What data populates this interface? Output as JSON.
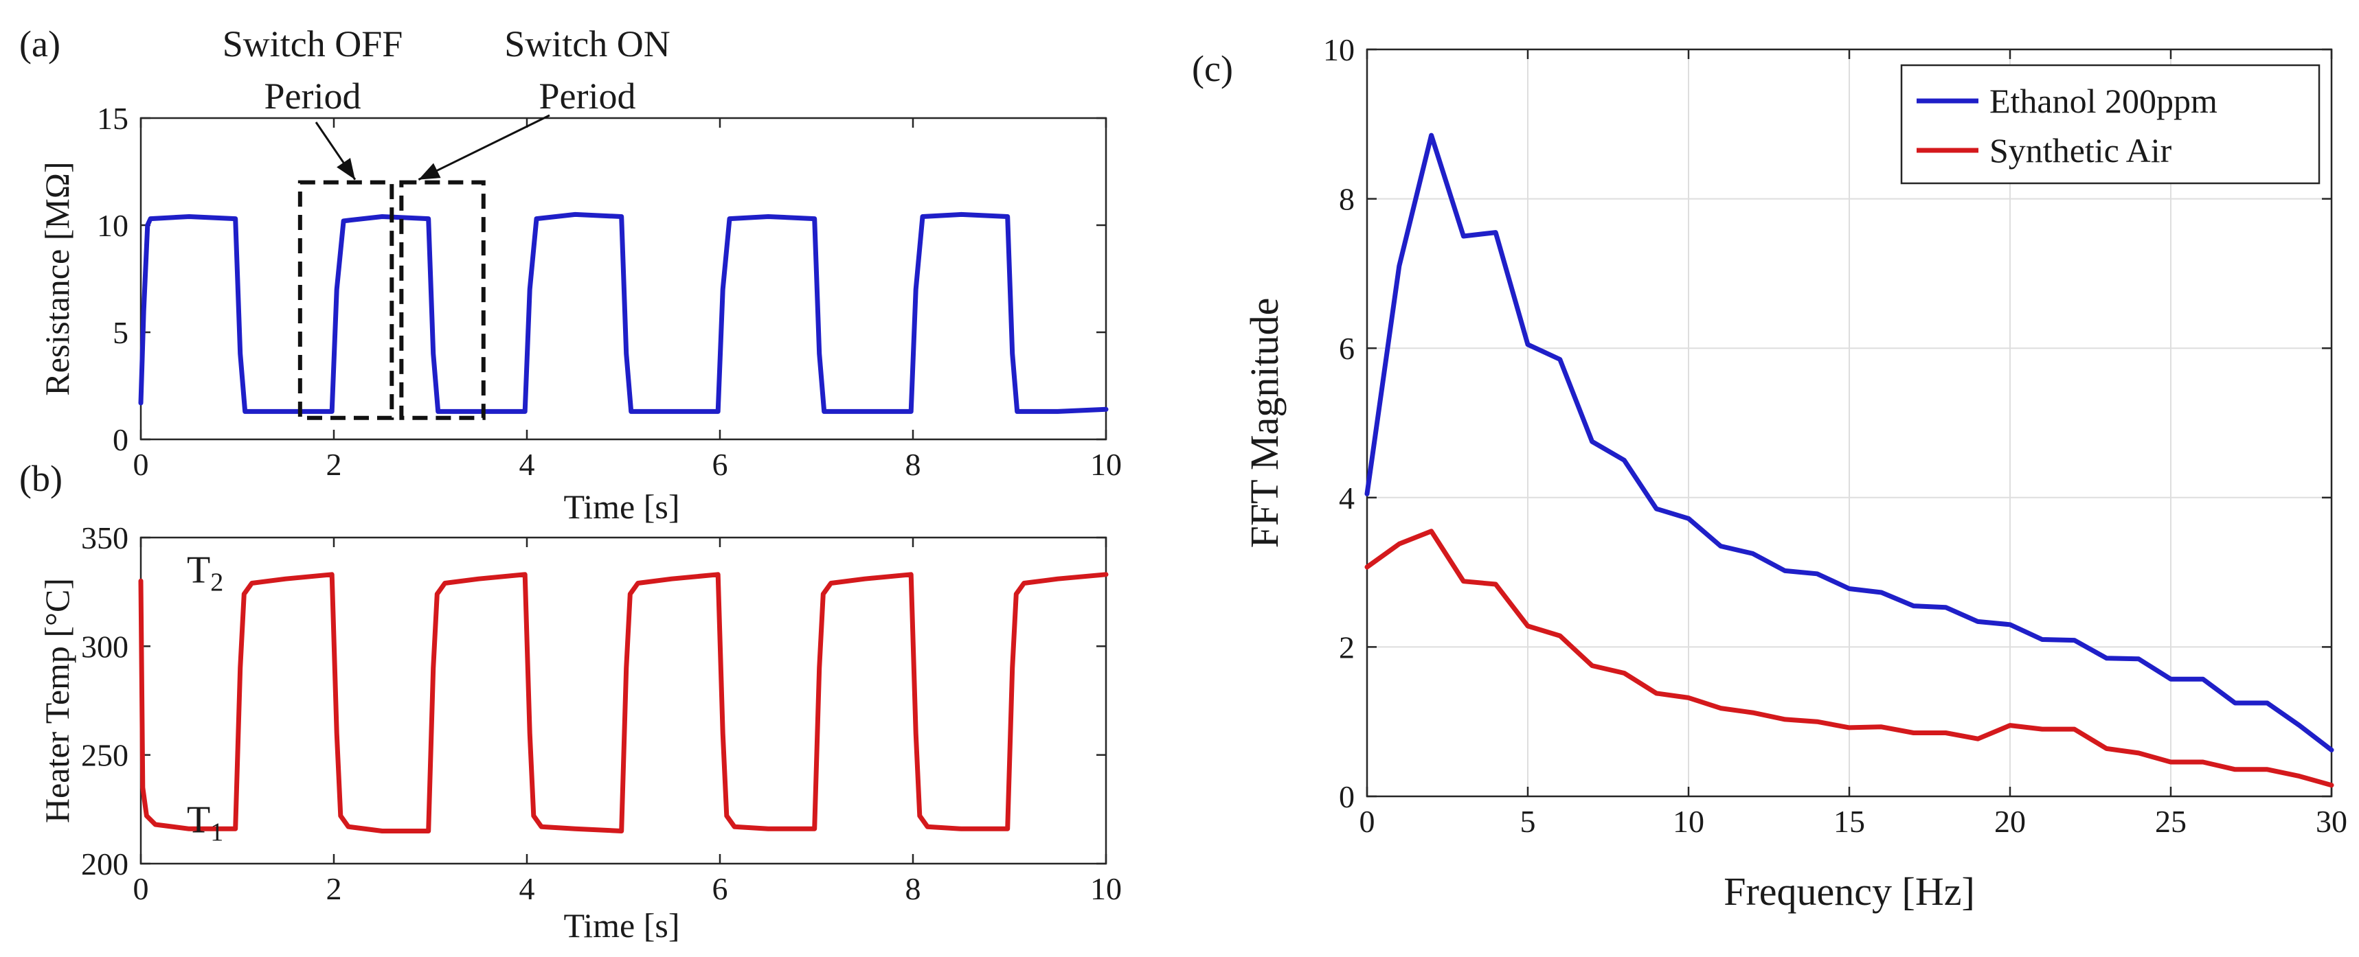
{
  "colors": {
    "blue": "#1f1fc8",
    "red": "#d4191c",
    "ink": "#111111",
    "grid": "#dedede"
  },
  "chart_data": [
    {
      "id": "a",
      "panel_label": "(a)",
      "type": "line",
      "title": "",
      "xlabel": "Time [s]",
      "ylabel": "Resistance [MΩ]",
      "xlim": [
        0,
        10
      ],
      "ylim": [
        0,
        15
      ],
      "xticks": [
        0,
        2,
        4,
        6,
        8,
        10
      ],
      "yticks": [
        0,
        5,
        10,
        15
      ],
      "grid": false,
      "series": [
        {
          "name": "Resistance",
          "color": "#1f1fc8",
          "x": [
            0,
            0.03,
            0.07,
            0.1,
            0.5,
            0.98,
            1.03,
            1.08,
            1.5,
            1.98,
            2.03,
            2.1,
            2.5,
            2.98,
            3.03,
            3.08,
            3.5,
            3.98,
            4.03,
            4.1,
            4.5,
            4.98,
            5.03,
            5.08,
            5.5,
            5.98,
            6.03,
            6.1,
            6.5,
            6.98,
            7.03,
            7.08,
            7.5,
            7.98,
            8.03,
            8.1,
            8.5,
            8.98,
            9.03,
            9.08,
            9.5,
            10
          ],
          "y": [
            1.7,
            6.0,
            10.0,
            10.3,
            10.4,
            10.3,
            4.0,
            1.3,
            1.3,
            1.3,
            7.0,
            10.2,
            10.4,
            10.3,
            4.0,
            1.3,
            1.3,
            1.3,
            7.0,
            10.3,
            10.5,
            10.4,
            4.0,
            1.3,
            1.3,
            1.3,
            7.0,
            10.3,
            10.4,
            10.3,
            4.0,
            1.3,
            1.3,
            1.3,
            7.0,
            10.4,
            10.5,
            10.4,
            4.0,
            1.3,
            1.3,
            1.4
          ]
        }
      ],
      "annotations": [
        {
          "label_line1": "Switch OFF",
          "label_line2": "Period",
          "box_x": [
            1.65,
            2.6
          ],
          "box_y": [
            1.0,
            12.0
          ]
        },
        {
          "label_line1": "Switch ON",
          "label_line2": "Period",
          "box_x": [
            2.7,
            3.55
          ],
          "box_y": [
            1.0,
            12.0
          ]
        }
      ]
    },
    {
      "id": "b",
      "panel_label": "(b)",
      "type": "line",
      "title": "",
      "xlabel": "Time [s]",
      "ylabel": "Heater Temp [°C]",
      "xlim": [
        0,
        10
      ],
      "ylim": [
        200,
        350
      ],
      "xticks": [
        0,
        2,
        4,
        6,
        8,
        10
      ],
      "yticks": [
        200,
        250,
        300,
        350
      ],
      "grid": false,
      "level_labels": [
        {
          "main": "T",
          "sub": "2",
          "x": 0.45,
          "y": 335
        },
        {
          "main": "T",
          "sub": "1",
          "x": 0.45,
          "y": 220
        }
      ],
      "series": [
        {
          "name": "Heater Temp",
          "color": "#d4191c",
          "x": [
            0,
            0.02,
            0.06,
            0.15,
            0.5,
            0.98,
            1.03,
            1.07,
            1.15,
            1.5,
            1.98,
            2.03,
            2.07,
            2.15,
            2.5,
            2.98,
            3.03,
            3.07,
            3.15,
            3.5,
            3.98,
            4.03,
            4.07,
            4.15,
            4.5,
            4.98,
            5.03,
            5.07,
            5.15,
            5.5,
            5.98,
            6.03,
            6.07,
            6.15,
            6.5,
            6.98,
            7.03,
            7.07,
            7.15,
            7.5,
            7.98,
            8.03,
            8.07,
            8.15,
            8.5,
            8.98,
            9.03,
            9.07,
            9.15,
            9.5,
            10
          ],
          "y": [
            330,
            235,
            222,
            218,
            216,
            216,
            290,
            324,
            329,
            331,
            333,
            260,
            222,
            217,
            215,
            215,
            290,
            324,
            329,
            331,
            333,
            260,
            222,
            217,
            216,
            215,
            290,
            324,
            329,
            331,
            333,
            260,
            222,
            217,
            216,
            216,
            290,
            324,
            329,
            331,
            333,
            260,
            222,
            217,
            216,
            216,
            290,
            324,
            329,
            331,
            333
          ]
        }
      ]
    },
    {
      "id": "c",
      "panel_label": "(c)",
      "type": "line",
      "title": "",
      "xlabel": "Frequency [Hz]",
      "ylabel": "FFT Magnitude",
      "xlim": [
        0,
        30
      ],
      "ylim": [
        0,
        10
      ],
      "xticks": [
        0,
        5,
        10,
        15,
        20,
        25,
        30
      ],
      "yticks": [
        0,
        2,
        4,
        6,
        8,
        10
      ],
      "grid": true,
      "legend_position": "top-right",
      "series": [
        {
          "name": "Ethanol 200ppm",
          "color": "#1f1fc8",
          "x": [
            0,
            1,
            2,
            3,
            4,
            5,
            6,
            7,
            8,
            9,
            10,
            11,
            12,
            13,
            14,
            15,
            16,
            17,
            18,
            19,
            20,
            21,
            22,
            23,
            24,
            25,
            26,
            27,
            28,
            29,
            30
          ],
          "y": [
            4.05,
            7.1,
            8.85,
            7.5,
            7.55,
            6.05,
            5.85,
            4.75,
            4.5,
            3.85,
            3.72,
            3.35,
            3.25,
            3.02,
            2.98,
            2.78,
            2.73,
            2.55,
            2.53,
            2.34,
            2.3,
            2.1,
            2.09,
            1.85,
            1.84,
            1.57,
            1.57,
            1.25,
            1.25,
            0.95,
            0.62
          ]
        },
        {
          "name": "Synthetic Air",
          "color": "#d4191c",
          "x": [
            0,
            1,
            2,
            3,
            4,
            5,
            6,
            7,
            8,
            9,
            10,
            11,
            12,
            13,
            14,
            15,
            16,
            17,
            18,
            19,
            20,
            21,
            22,
            23,
            24,
            25,
            26,
            27,
            28,
            29,
            30
          ],
          "y": [
            3.07,
            3.38,
            3.55,
            2.88,
            2.84,
            2.28,
            2.15,
            1.75,
            1.65,
            1.38,
            1.32,
            1.18,
            1.12,
            1.03,
            1.0,
            0.92,
            0.93,
            0.85,
            0.85,
            0.77,
            0.95,
            0.9,
            0.9,
            0.64,
            0.58,
            0.46,
            0.46,
            0.36,
            0.36,
            0.27,
            0.15
          ]
        }
      ]
    }
  ]
}
